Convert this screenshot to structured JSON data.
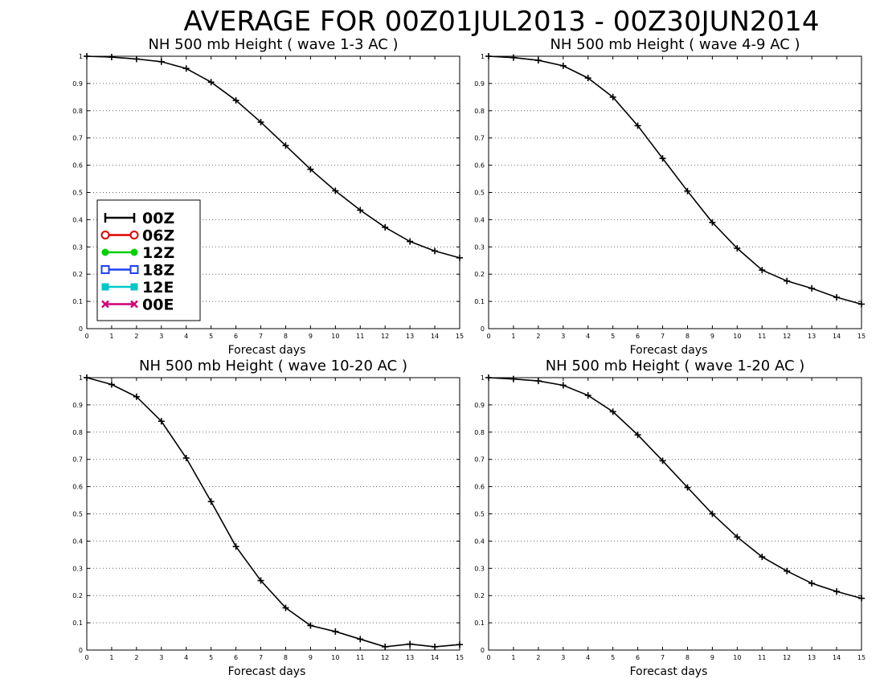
{
  "page_title": "AVERAGE FOR 00Z01JUL2013 - 00Z30JUN2014",
  "legend": {
    "items": [
      {
        "label": "00Z",
        "color": "#000000",
        "marker": "plus"
      },
      {
        "label": "06Z",
        "color": "#e00000",
        "marker": "open-circle"
      },
      {
        "label": "12Z",
        "color": "#00d000",
        "marker": "filled-circle"
      },
      {
        "label": "18Z",
        "color": "#2040f0",
        "marker": "open-square"
      },
      {
        "label": "12E",
        "color": "#00c8c8",
        "marker": "filled-square"
      },
      {
        "label": "00E",
        "color": "#d0007a",
        "marker": "x"
      }
    ]
  },
  "chart_data": [
    {
      "type": "line",
      "title": "NH 500 mb Height ( wave 1-3 AC )",
      "xlabel": "Forecast days",
      "ylabel": "",
      "xlim": [
        0,
        15
      ],
      "ylim": [
        0,
        1
      ],
      "x_ticks": [
        "0",
        "1",
        "2",
        "3",
        "4",
        "5",
        "6",
        "7",
        "8",
        "9",
        "10",
        "11",
        "12",
        "13",
        "14",
        "15"
      ],
      "y_ticks": [
        "0",
        "0.1",
        "0.2",
        "0.3",
        "0.4",
        "0.5",
        "0.6",
        "0.7",
        "0.8",
        "0.9",
        "1"
      ],
      "grid": "horizontal dotted",
      "legend_position": "left-middle",
      "x": [
        0,
        1,
        2,
        3,
        4,
        5,
        6,
        7,
        8,
        9,
        10,
        11,
        12,
        13,
        14,
        15
      ],
      "series": [
        {
          "name": "00Z",
          "color": "#000000",
          "values": [
            1.0,
            0.997,
            0.99,
            0.98,
            0.955,
            0.905,
            0.838,
            0.758,
            0.672,
            0.585,
            0.506,
            0.435,
            0.372,
            0.32,
            0.285,
            0.26
          ]
        }
      ]
    },
    {
      "type": "line",
      "title": "NH 500 mb Height ( wave 4-9 AC )",
      "xlabel": "Forecast days",
      "ylabel": "",
      "xlim": [
        0,
        15
      ],
      "ylim": [
        0,
        1
      ],
      "x_ticks": [
        "0",
        "1",
        "2",
        "3",
        "4",
        "5",
        "6",
        "7",
        "8",
        "9",
        "10",
        "11",
        "12",
        "13",
        "14",
        "15"
      ],
      "y_ticks": [
        "0",
        "0.1",
        "0.2",
        "0.3",
        "0.4",
        "0.5",
        "0.6",
        "0.7",
        "0.8",
        "0.9",
        "1"
      ],
      "grid": "horizontal dotted",
      "x": [
        0,
        1,
        2,
        3,
        4,
        5,
        6,
        7,
        8,
        9,
        10,
        11,
        12,
        13,
        14,
        15
      ],
      "series": [
        {
          "name": "00Z",
          "color": "#000000",
          "values": [
            1.0,
            0.995,
            0.985,
            0.965,
            0.92,
            0.85,
            0.745,
            0.625,
            0.505,
            0.39,
            0.295,
            0.215,
            0.175,
            0.148,
            0.115,
            0.09
          ]
        }
      ]
    },
    {
      "type": "line",
      "title": "NH 500 mb Height ( wave 10-20 AC )",
      "xlabel": "Forecast days",
      "ylabel": "",
      "xlim": [
        0,
        15
      ],
      "ylim": [
        0,
        1
      ],
      "x_ticks": [
        "0",
        "1",
        "2",
        "3",
        "4",
        "5",
        "6",
        "7",
        "8",
        "9",
        "10",
        "11",
        "12",
        "13",
        "14",
        "15"
      ],
      "y_ticks": [
        "0",
        "0.1",
        "0.2",
        "0.3",
        "0.4",
        "0.5",
        "0.6",
        "0.7",
        "0.8",
        "0.9",
        "1"
      ],
      "grid": "horizontal dotted",
      "x": [
        0,
        1,
        2,
        3,
        4,
        5,
        6,
        7,
        8,
        9,
        10,
        11,
        12,
        13,
        14,
        15
      ],
      "series": [
        {
          "name": "00Z",
          "color": "#000000",
          "values": [
            1.0,
            0.975,
            0.93,
            0.84,
            0.705,
            0.545,
            0.38,
            0.255,
            0.155,
            0.09,
            0.068,
            0.04,
            0.012,
            0.022,
            0.012,
            0.02
          ]
        }
      ]
    },
    {
      "type": "line",
      "title": "NH 500 mb Height ( wave 1-20 AC )",
      "xlabel": "Forecast days",
      "ylabel": "",
      "xlim": [
        0,
        15
      ],
      "ylim": [
        0,
        1
      ],
      "x_ticks": [
        "0",
        "1",
        "2",
        "3",
        "4",
        "5",
        "6",
        "7",
        "8",
        "9",
        "10",
        "11",
        "12",
        "13",
        "14",
        "15"
      ],
      "y_ticks": [
        "0",
        "0.1",
        "0.2",
        "0.3",
        "0.4",
        "0.5",
        "0.6",
        "0.7",
        "0.8",
        "0.9",
        "1"
      ],
      "grid": "horizontal dotted",
      "x": [
        0,
        1,
        2,
        3,
        4,
        5,
        6,
        7,
        8,
        9,
        10,
        11,
        12,
        13,
        14,
        15
      ],
      "series": [
        {
          "name": "00Z",
          "color": "#000000",
          "values": [
            1.0,
            0.995,
            0.988,
            0.972,
            0.935,
            0.875,
            0.79,
            0.695,
            0.597,
            0.5,
            0.415,
            0.342,
            0.29,
            0.245,
            0.215,
            0.19
          ]
        }
      ]
    }
  ]
}
